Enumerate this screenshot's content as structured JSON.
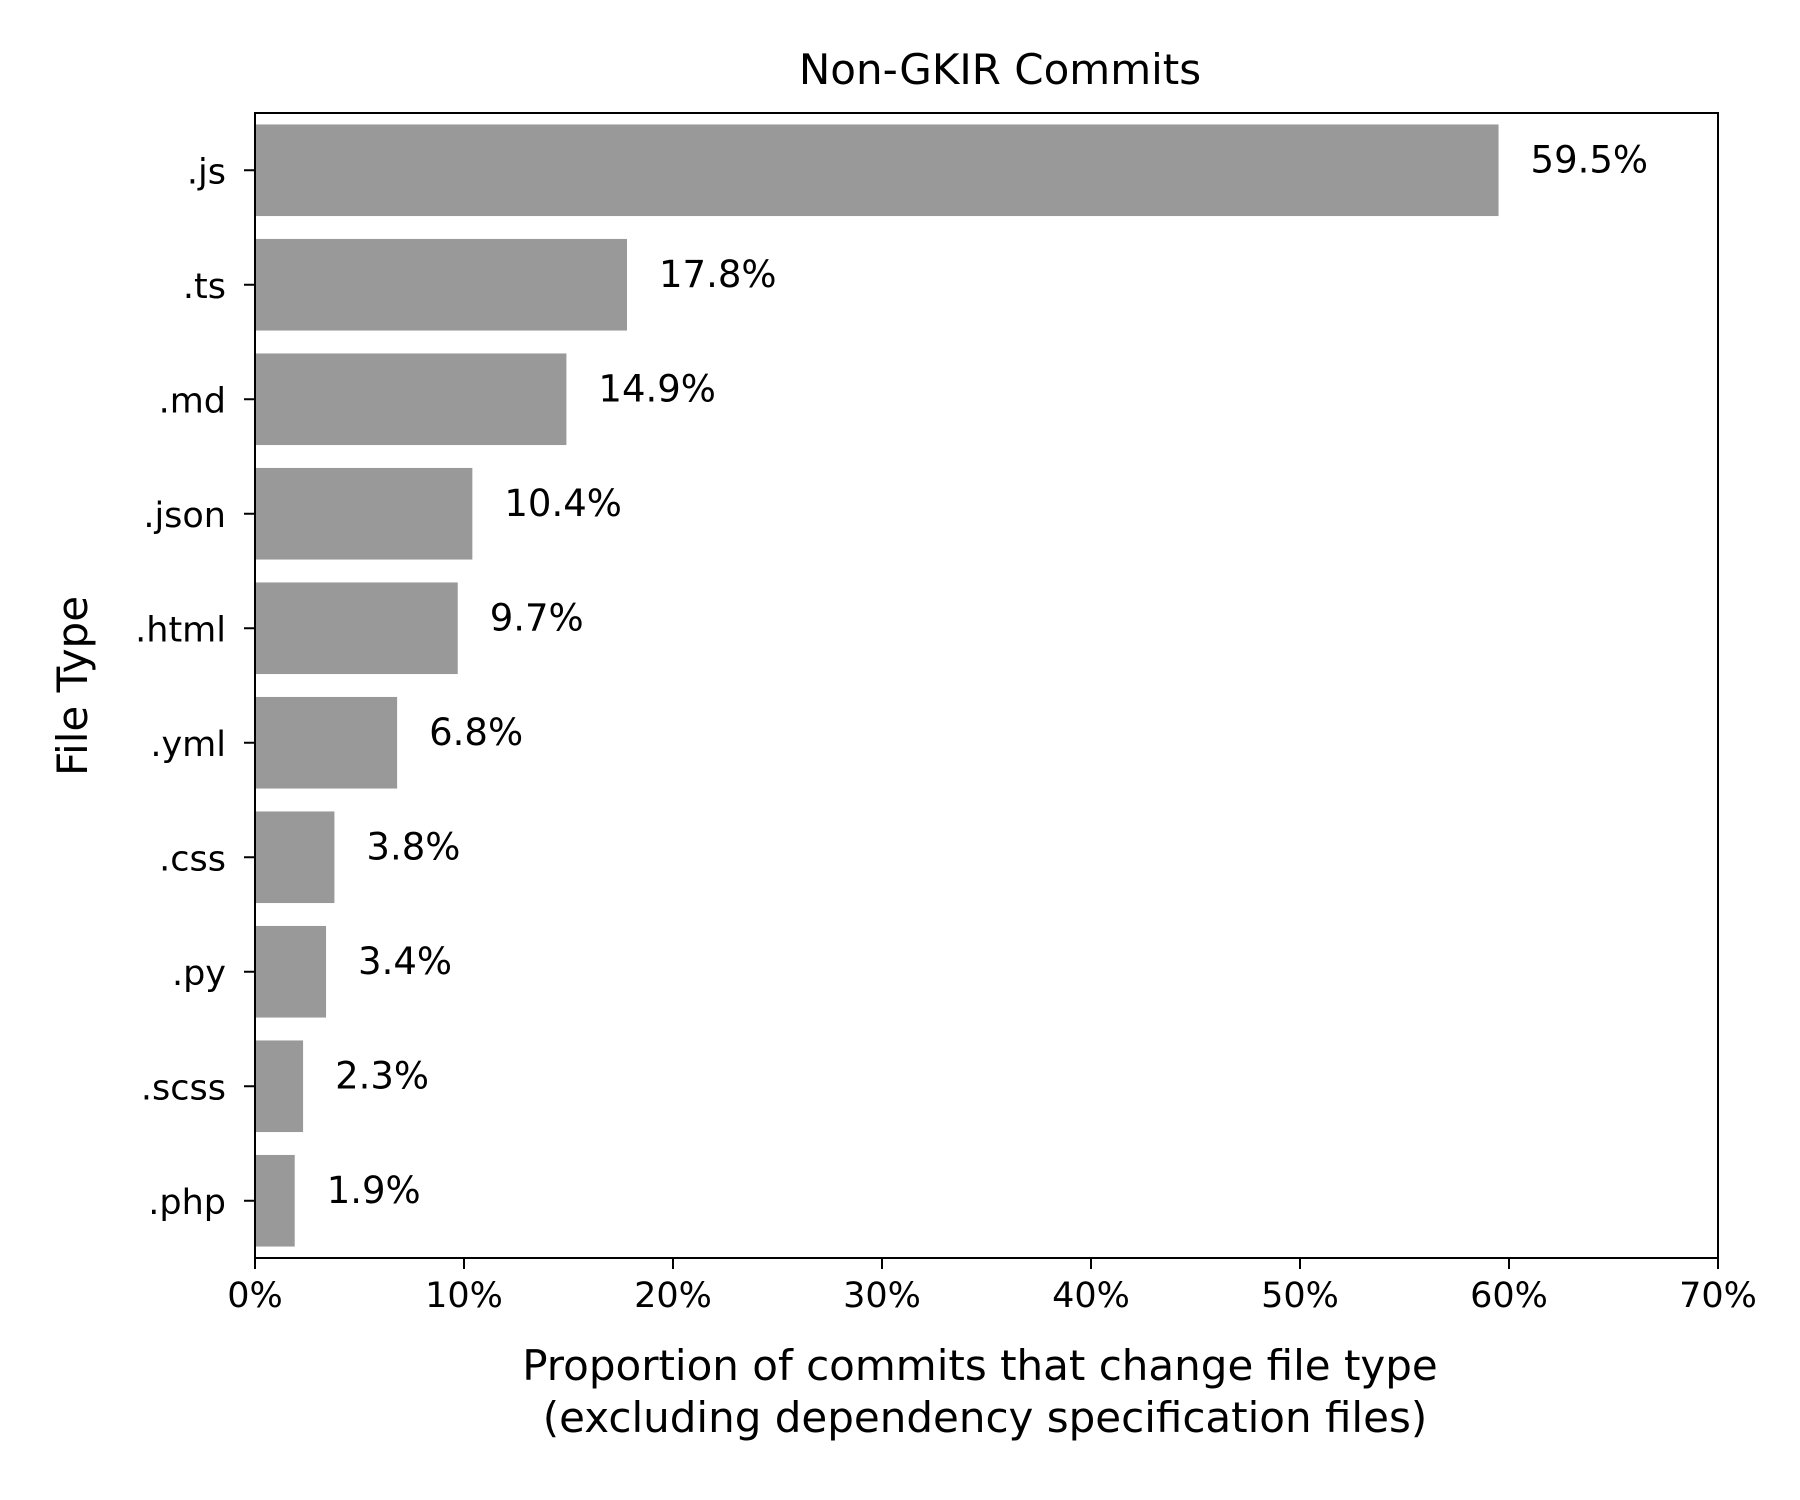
{
  "chart_data": {
    "type": "bar",
    "orientation": "horizontal",
    "title": "Non-GKIR Commits",
    "xlabel_lines": [
      "Proportion of commits that change file type",
      "(excluding dependency specification files)"
    ],
    "ylabel": "File Type",
    "categories": [
      ".js",
      ".ts",
      ".md",
      ".json",
      ".html",
      ".yml",
      ".css",
      ".py",
      ".scss",
      ".php"
    ],
    "values": [
      59.5,
      17.8,
      14.9,
      10.4,
      9.7,
      6.8,
      3.8,
      3.4,
      2.3,
      1.9
    ],
    "value_labels": [
      "59.5%",
      "17.8%",
      "14.9%",
      "10.4%",
      "9.7%",
      "6.8%",
      "3.8%",
      "3.4%",
      "2.3%",
      "1.9%"
    ],
    "xlim": [
      0,
      70
    ],
    "x_ticks": [
      0,
      10,
      20,
      30,
      40,
      50,
      60,
      70
    ],
    "x_tick_labels": [
      "0%",
      "10%",
      "20%",
      "30%",
      "40%",
      "50%",
      "60%",
      "70%"
    ],
    "grid": false,
    "bar_color": "#999999"
  }
}
